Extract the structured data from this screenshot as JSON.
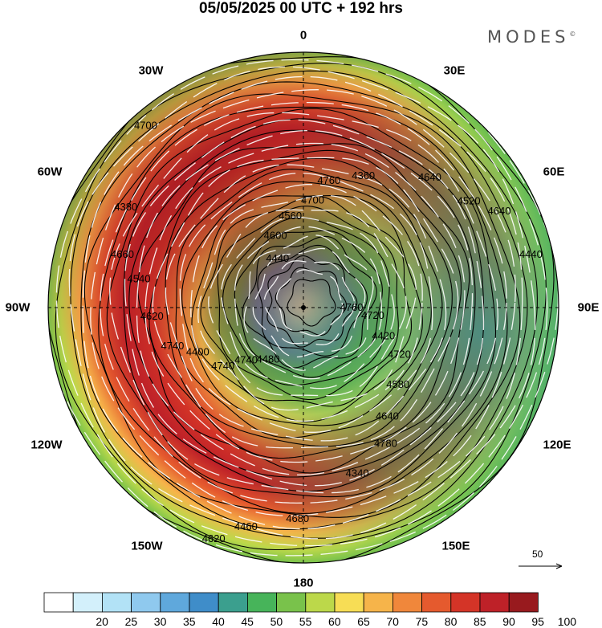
{
  "title": "05/05/2025  00 UTC  + 192 hrs",
  "brand": "MODES",
  "brand_mark": "©",
  "longitude_labels": [
    "0",
    "30E",
    "60E",
    "90E",
    "120E",
    "150E",
    "180",
    "150W",
    "120W",
    "90W",
    "60W",
    "30W"
  ],
  "contour_labels": [
    "4760",
    "4740",
    "4700",
    "4640",
    "4540",
    "4520",
    "4460",
    "4440",
    "4420",
    "4400",
    "4360",
    "4340",
    "4380",
    "4440",
    "4480",
    "4560",
    "4580",
    "4620",
    "4640",
    "4680",
    "4700",
    "4720",
    "4740",
    "4760",
    "4780",
    "4660",
    "4640",
    "4620",
    "4600",
    "4720",
    "4740"
  ],
  "vector_reference": "50",
  "colorbar": {
    "labels": [
      "20",
      "25",
      "30",
      "35",
      "40",
      "45",
      "50",
      "55",
      "60",
      "65",
      "70",
      "75",
      "80",
      "85",
      "90",
      "95",
      "100"
    ],
    "colors": [
      "#ffffff",
      "#d3f0fb",
      "#b2e2f6",
      "#8fc9ee",
      "#5fa8dc",
      "#3f8dc9",
      "#3b9f8e",
      "#47b45a",
      "#79c24b",
      "#bcd84a",
      "#f7dd55",
      "#f6b44a",
      "#f0873b",
      "#e55a2e",
      "#d43427",
      "#be2128",
      "#981a1e"
    ]
  },
  "map_data": {
    "projection": "north-polar-stereographic",
    "field": "500 hPa geopotential height (m) and wind speed (kt)",
    "height_contour_interval": 20
  }
}
